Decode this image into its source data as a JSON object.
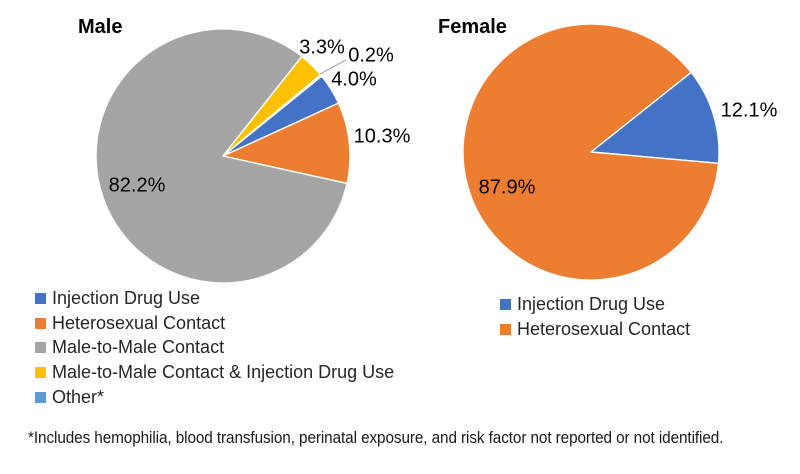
{
  "chart_data": [
    {
      "type": "pie",
      "title": "Male",
      "rotation_deg": 51,
      "labels": [
        "Injection Drug Use",
        "Heterosexual Contact",
        "Male-to-Male Contact",
        "Male-to-Male Contact & Injection Drug Use",
        "Other*"
      ],
      "values": [
        4.0,
        10.3,
        82.2,
        3.3,
        0.2
      ],
      "value_labels": [
        "4.0%",
        "10.3%",
        "82.2%",
        "3.3%",
        "0.2%"
      ],
      "colors": [
        "#4472C4",
        "#ED7D31",
        "#A5A5A5",
        "#FFC000",
        "#5B9BD5"
      ],
      "legend_position": "bottom-left",
      "grid": false
    },
    {
      "type": "pie",
      "title": "Female",
      "rotation_deg": 51.5,
      "labels": [
        "Injection Drug Use",
        "Heterosexual Contact"
      ],
      "values": [
        12.1,
        87.9
      ],
      "value_labels": [
        "12.1%",
        "87.9%"
      ],
      "colors": [
        "#4472C4",
        "#ED7D31"
      ],
      "legend_position": "bottom-right",
      "grid": false
    }
  ],
  "footnote": "*Includes hemophilia, blood transfusion, perinatal exposure, and risk factor not reported or not identified.",
  "styles": {
    "slice_border_color": "#ffffff",
    "leader_line_color": "#A6A6A6",
    "label_color": "#000000",
    "legend_text_color": "#262626"
  }
}
